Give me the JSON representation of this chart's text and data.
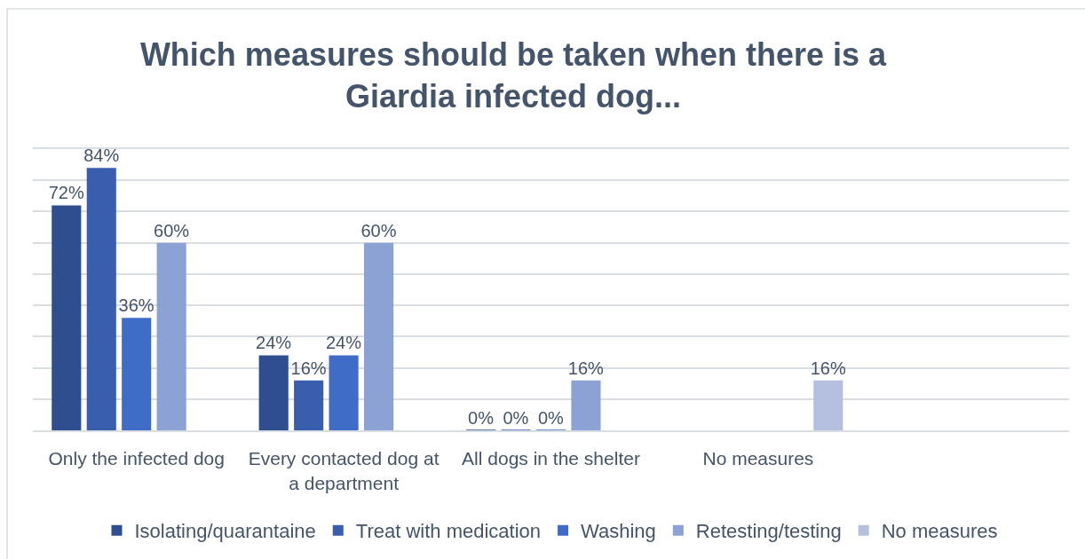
{
  "chart_data": {
    "type": "bar",
    "title": "Which measures should be taken when there is a\nGiardia infected dog...",
    "categories": [
      "Only the infected dog",
      "Every contacted dog at\na department",
      "All dogs in the shelter",
      "No measures",
      null
    ],
    "series": [
      {
        "name": "Isolating/quarantaine",
        "color": "#2f4e8f",
        "values": [
          72,
          24,
          0,
          null,
          null
        ],
        "value_labels": [
          "72%",
          "24%",
          "0%",
          null,
          null
        ]
      },
      {
        "name": "Treat with medication",
        "color": "#3a5eae",
        "values": [
          84,
          16,
          0,
          null,
          null
        ],
        "value_labels": [
          "84%",
          "16%",
          "0%",
          null,
          null
        ]
      },
      {
        "name": "Washing",
        "color": "#3f6cc7",
        "values": [
          36,
          24,
          0,
          null,
          null
        ],
        "value_labels": [
          "36%",
          "24%",
          "0%",
          null,
          null
        ]
      },
      {
        "name": "Retesting/testing",
        "color": "#8ca1d4",
        "values": [
          60,
          60,
          16,
          null,
          null
        ],
        "value_labels": [
          "60%",
          "60%",
          "16%",
          null,
          null
        ]
      },
      {
        "name": "No measures",
        "color": "#b5bfe0",
        "values": [
          null,
          null,
          null,
          16,
          null
        ],
        "value_labels": [
          null,
          null,
          null,
          "16%",
          null
        ]
      }
    ],
    "ylim": [
      0,
      90
    ],
    "yticks": [
      {
        "value": 0,
        "label": null
      },
      {
        "value": 10,
        "label": null
      },
      {
        "value": 20,
        "label": null
      },
      {
        "value": 30,
        "label": null
      },
      {
        "value": 40,
        "label": null
      },
      {
        "value": 50,
        "label": null
      },
      {
        "value": 60,
        "label": null
      },
      {
        "value": 70,
        "label": null
      },
      {
        "value": 80,
        "label": null
      },
      {
        "value": 90,
        "label": null
      }
    ],
    "grid": "y",
    "legend": "bottom",
    "tick_labels": "x"
  }
}
